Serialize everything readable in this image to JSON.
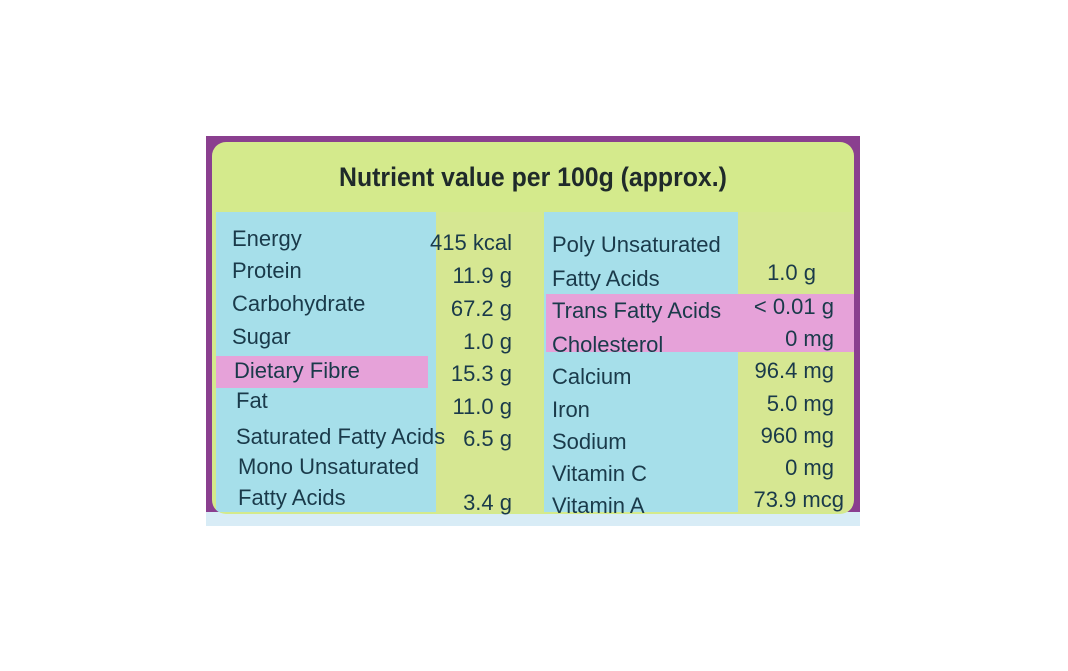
{
  "title": "Nutrient value per 100g (approx.)",
  "left_column": [
    {
      "name": "Energy",
      "value": "415 kcal"
    },
    {
      "name": "Protein",
      "value": "11.9 g"
    },
    {
      "name": "Carbohydrate",
      "value": "67.2 g"
    },
    {
      "name": "Sugar",
      "value": "1.0 g"
    },
    {
      "name": "Dietary Fibre",
      "value": "15.3 g"
    },
    {
      "name": "Fat",
      "value": "11.0 g"
    },
    {
      "name": "Saturated Fatty Acids",
      "value": "6.5 g"
    },
    {
      "name": "Mono Unsaturated",
      "value": ""
    },
    {
      "name": "Fatty Acids",
      "value": "3.4 g"
    }
  ],
  "right_column": [
    {
      "name": "Poly Unsaturated",
      "value": ""
    },
    {
      "name": "Fatty Acids",
      "value": "1.0 g"
    },
    {
      "name": "Trans Fatty Acids",
      "value": "< 0.01 g"
    },
    {
      "name": "Cholesterol",
      "value": "0 mg"
    },
    {
      "name": "Calcium",
      "value": "96.4 mg"
    },
    {
      "name": "Iron",
      "value": "5.0 mg"
    },
    {
      "name": "Sodium",
      "value": "960 mg"
    },
    {
      "name": "Vitamin C",
      "value": "0 mg"
    },
    {
      "name": "Vitamin A",
      "value": "73.9 mcg"
    }
  ],
  "colors": {
    "frame": "#8a3f8f",
    "header": "#d4ea8c",
    "name_cells": "#a6dfea",
    "value_cells": "#d6e792",
    "highlight": "#e6a2d9",
    "text": "#1a3a4a"
  }
}
